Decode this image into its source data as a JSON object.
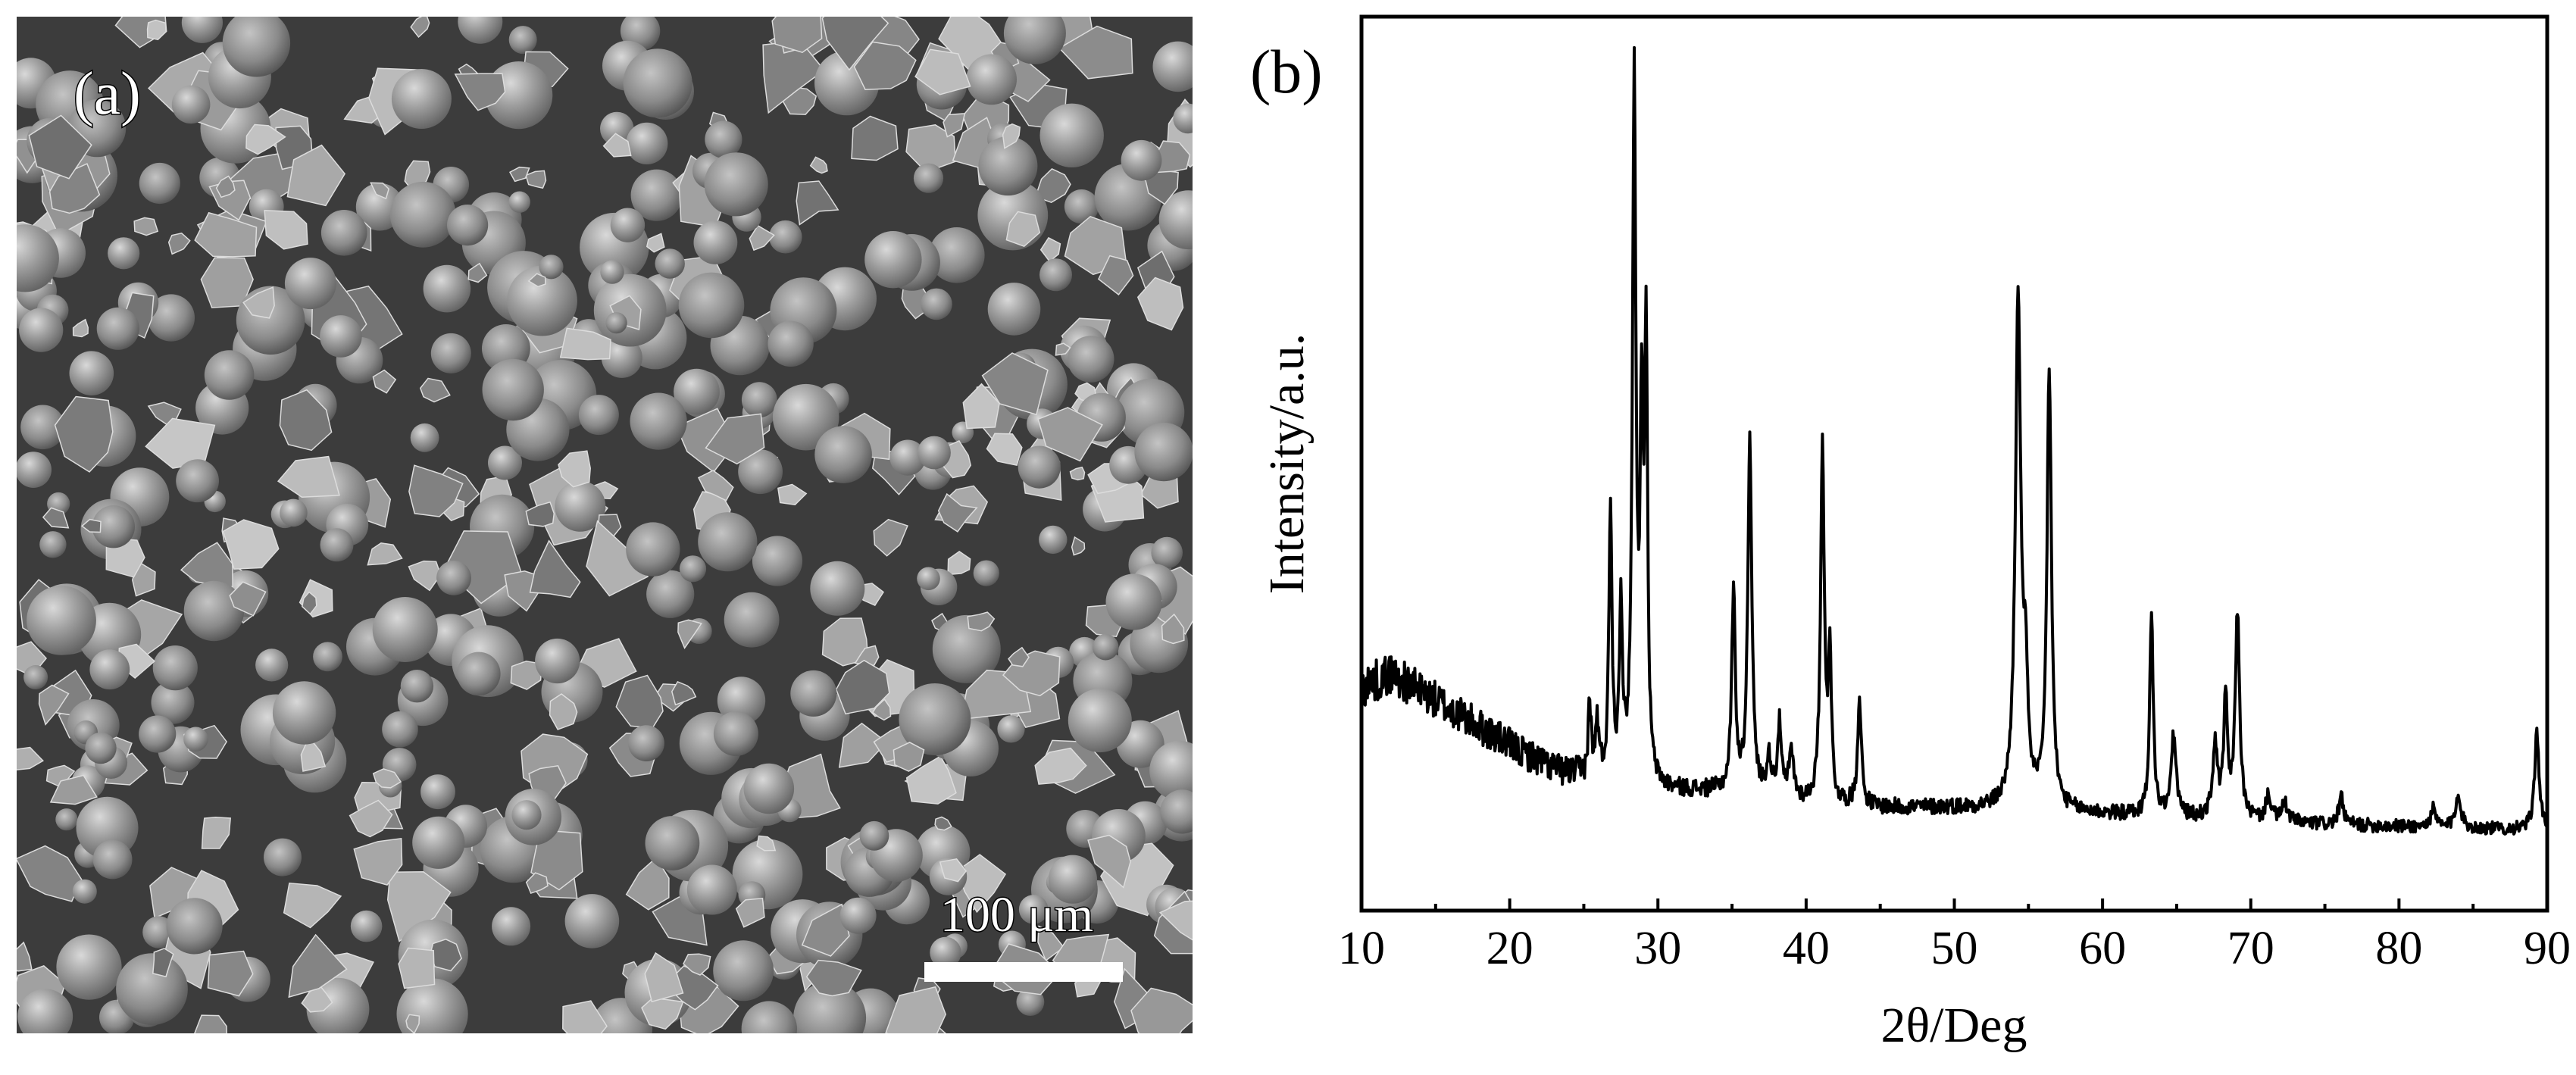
{
  "panel_a": {
    "label": "(a)",
    "scale_bar_text": "100 μm",
    "image_kind": "SEM micrograph of mixed spherical and angular powder particles"
  },
  "panel_b": {
    "label": "(b)"
  },
  "chart_data": {
    "type": "line",
    "title": "",
    "xlabel": "2θ/Deg",
    "ylabel": "Intensity/a.u.",
    "xlim": [
      10,
      90
    ],
    "ylim": [
      0,
      100
    ],
    "xticks": [
      10,
      20,
      30,
      40,
      50,
      60,
      70,
      80,
      90
    ],
    "yticks": [],
    "grid": false,
    "legend": "none",
    "line_color": "#000000",
    "series": [
      {
        "baseline": [
          [
            10,
            25.0
          ],
          [
            12,
            26.5
          ],
          [
            15,
            23.5
          ],
          [
            18,
            20.5
          ],
          [
            21,
            17.5
          ],
          [
            23.5,
            15.5
          ],
          [
            25,
            15.0
          ],
          [
            27,
            14.5
          ],
          [
            29.5,
            13.5
          ],
          [
            35,
            13.2
          ],
          [
            40,
            12.0
          ],
          [
            45,
            11.5
          ],
          [
            50,
            11.5
          ],
          [
            55,
            11.3
          ],
          [
            60,
            10.8
          ],
          [
            65,
            10.4
          ],
          [
            70,
            10.0
          ],
          [
            75,
            9.6
          ],
          [
            80,
            9.4
          ],
          [
            85,
            9.2
          ],
          [
            90,
            9.0
          ]
        ],
        "peaks": [
          {
            "x": 25.4,
            "height": 8,
            "width": 0.12
          },
          {
            "x": 25.9,
            "height": 6,
            "width": 0.12
          },
          {
            "x": 26.8,
            "height": 31,
            "width": 0.12
          },
          {
            "x": 27.5,
            "height": 20,
            "width": 0.12
          },
          {
            "x": 28.4,
            "height": 78,
            "width": 0.14
          },
          {
            "x": 28.9,
            "height": 38,
            "width": 0.12
          },
          {
            "x": 29.2,
            "height": 48,
            "width": 0.12
          },
          {
            "x": 35.1,
            "height": 22,
            "width": 0.15
          },
          {
            "x": 36.2,
            "height": 40,
            "width": 0.16
          },
          {
            "x": 37.5,
            "height": 4,
            "width": 0.2
          },
          {
            "x": 38.2,
            "height": 8,
            "width": 0.15
          },
          {
            "x": 39.0,
            "height": 5,
            "width": 0.2
          },
          {
            "x": 41.1,
            "height": 40,
            "width": 0.15
          },
          {
            "x": 41.6,
            "height": 17,
            "width": 0.12
          },
          {
            "x": 43.6,
            "height": 12,
            "width": 0.15
          },
          {
            "x": 54.3,
            "height": 56,
            "width": 0.22
          },
          {
            "x": 54.8,
            "height": 12,
            "width": 0.2
          },
          {
            "x": 56.4,
            "height": 49,
            "width": 0.18
          },
          {
            "x": 63.3,
            "height": 22,
            "width": 0.15
          },
          {
            "x": 64.8,
            "height": 9,
            "width": 0.2
          },
          {
            "x": 67.6,
            "height": 8,
            "width": 0.2
          },
          {
            "x": 68.3,
            "height": 13,
            "width": 0.15
          },
          {
            "x": 69.1,
            "height": 23,
            "width": 0.18
          },
          {
            "x": 71.2,
            "height": 3,
            "width": 0.2
          },
          {
            "x": 72.3,
            "height": 2,
            "width": 0.25
          },
          {
            "x": 76.1,
            "height": 3,
            "width": 0.2
          },
          {
            "x": 82.3,
            "height": 2,
            "width": 0.2
          },
          {
            "x": 84.0,
            "height": 4,
            "width": 0.2
          },
          {
            "x": 89.3,
            "height": 11,
            "width": 0.18
          }
        ],
        "noise_amplitude": [
          [
            10,
            2.4
          ],
          [
            25,
            1.6
          ],
          [
            30,
            1.0
          ],
          [
            90,
            0.7
          ]
        ]
      }
    ]
  }
}
